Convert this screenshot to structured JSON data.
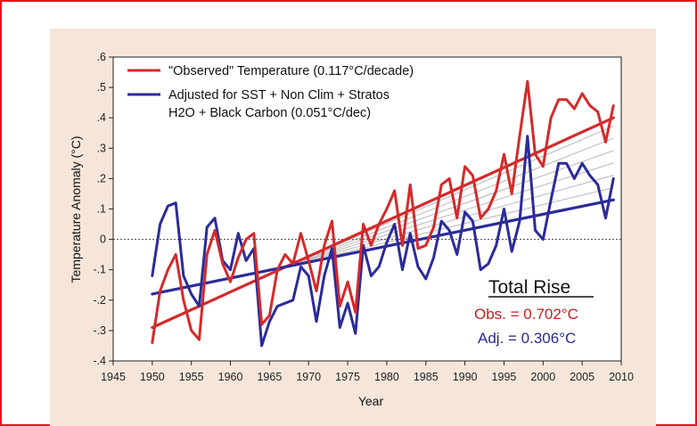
{
  "chart_data": {
    "type": "line",
    "title": "",
    "xlabel": "Year",
    "ylabel": "Temperature Anomaly (°C)",
    "xlim": [
      1945,
      2010
    ],
    "ylim": [
      -0.4,
      0.6
    ],
    "x_ticks": [
      1945,
      1950,
      1955,
      1960,
      1965,
      1970,
      1975,
      1980,
      1985,
      1990,
      1995,
      2000,
      2005,
      2010
    ],
    "y_ticks": [
      -0.4,
      -0.3,
      -0.2,
      -0.1,
      0,
      0.1,
      0.2,
      0.3,
      0.4,
      0.5,
      0.6
    ],
    "x_tick_labels": [
      "1945",
      "1950",
      "1955",
      "1960",
      "1965",
      "1970",
      "1975",
      "1980",
      "1985",
      "1990",
      "1995",
      "2000",
      "2005",
      "2010"
    ],
    "y_tick_labels": [
      "-.4",
      "-.3",
      "-.2",
      "-.1",
      "0",
      ".1",
      ".2",
      ".3",
      ".4",
      ".5",
      ".6"
    ],
    "zero_line": true,
    "legend": {
      "placement": "top-left",
      "entries": [
        {
          "label": "\"Observed\" Temperature (0.117°C/decade)",
          "color": "#d42a2a"
        },
        {
          "label_line1": "Adjusted for SST + Non Clim + Stratos",
          "label_line2": "H2O + Black Carbon (0.051°C/dec)",
          "color": "#2b2b9a"
        }
      ]
    },
    "series": [
      {
        "name": "\"Observed\" Temperature",
        "color": "#d42a2a",
        "x": [
          1950,
          1951,
          1952,
          1953,
          1954,
          1955,
          1956,
          1957,
          1958,
          1959,
          1960,
          1961,
          1962,
          1963,
          1964,
          1965,
          1966,
          1967,
          1968,
          1969,
          1970,
          1971,
          1972,
          1973,
          1974,
          1975,
          1976,
          1977,
          1978,
          1979,
          1980,
          1981,
          1982,
          1983,
          1984,
          1985,
          1986,
          1987,
          1988,
          1989,
          1990,
          1991,
          1992,
          1993,
          1994,
          1995,
          1996,
          1997,
          1998,
          1999,
          2000,
          2001,
          2002,
          2003,
          2004,
          2005,
          2006,
          2007,
          2008,
          2009
        ],
        "values": [
          -0.34,
          -0.17,
          -0.1,
          -0.05,
          -0.2,
          -0.3,
          -0.33,
          -0.05,
          0.03,
          -0.08,
          -0.14,
          -0.06,
          0.0,
          0.02,
          -0.28,
          -0.25,
          -0.1,
          -0.05,
          -0.08,
          0.02,
          -0.07,
          -0.17,
          -0.02,
          0.06,
          -0.22,
          -0.14,
          -0.24,
          0.05,
          -0.02,
          0.05,
          0.1,
          0.16,
          -0.02,
          0.18,
          -0.03,
          -0.02,
          0.04,
          0.18,
          0.2,
          0.07,
          0.24,
          0.21,
          0.07,
          0.1,
          0.16,
          0.28,
          0.15,
          0.34,
          0.52,
          0.28,
          0.24,
          0.4,
          0.46,
          0.46,
          0.43,
          0.48,
          0.44,
          0.42,
          0.32,
          0.44
        ]
      },
      {
        "name": "Adjusted for SST + Non Clim + Stratos H2O + Black Carbon",
        "color": "#2b2b9a",
        "x": [
          1950,
          1951,
          1952,
          1953,
          1954,
          1955,
          1956,
          1957,
          1958,
          1959,
          1960,
          1961,
          1962,
          1963,
          1964,
          1965,
          1966,
          1967,
          1968,
          1969,
          1970,
          1971,
          1972,
          1973,
          1974,
          1975,
          1976,
          1977,
          1978,
          1979,
          1980,
          1981,
          1982,
          1983,
          1984,
          1985,
          1986,
          1987,
          1988,
          1989,
          1990,
          1991,
          1992,
          1993,
          1994,
          1995,
          1996,
          1997,
          1998,
          1999,
          2000,
          2001,
          2002,
          2003,
          2004,
          2005,
          2006,
          2007,
          2008,
          2009
        ],
        "values": [
          -0.12,
          0.05,
          0.11,
          0.12,
          -0.12,
          -0.18,
          -0.22,
          0.04,
          0.07,
          -0.07,
          -0.1,
          0.02,
          -0.07,
          -0.03,
          -0.35,
          -0.27,
          -0.22,
          -0.21,
          -0.2,
          -0.09,
          -0.12,
          -0.27,
          -0.12,
          -0.03,
          -0.29,
          -0.21,
          -0.31,
          -0.02,
          -0.12,
          -0.09,
          -0.01,
          0.05,
          -0.1,
          0.02,
          -0.09,
          -0.13,
          -0.06,
          0.06,
          0.03,
          -0.05,
          0.09,
          0.06,
          -0.1,
          -0.08,
          -0.02,
          0.1,
          -0.04,
          0.06,
          0.34,
          0.03,
          0.0,
          0.13,
          0.25,
          0.25,
          0.2,
          0.25,
          0.21,
          0.18,
          0.07,
          0.2
        ]
      }
    ],
    "trend_lines": [
      {
        "name": "Observed trend",
        "color": "#d42a2a",
        "x": [
          1950,
          2009
        ],
        "values": [
          -0.29,
          0.4
        ]
      },
      {
        "name": "Adjusted trend",
        "color": "#2b2b9a",
        "x": [
          1950,
          2009
        ],
        "values": [
          -0.18,
          0.13
        ]
      }
    ],
    "background_trends_color": "#b8b8b8",
    "annotation": {
      "title": "Total Rise",
      "obs": "Obs. = 0.702°C",
      "adj": "Adj. = 0.306°C"
    }
  }
}
